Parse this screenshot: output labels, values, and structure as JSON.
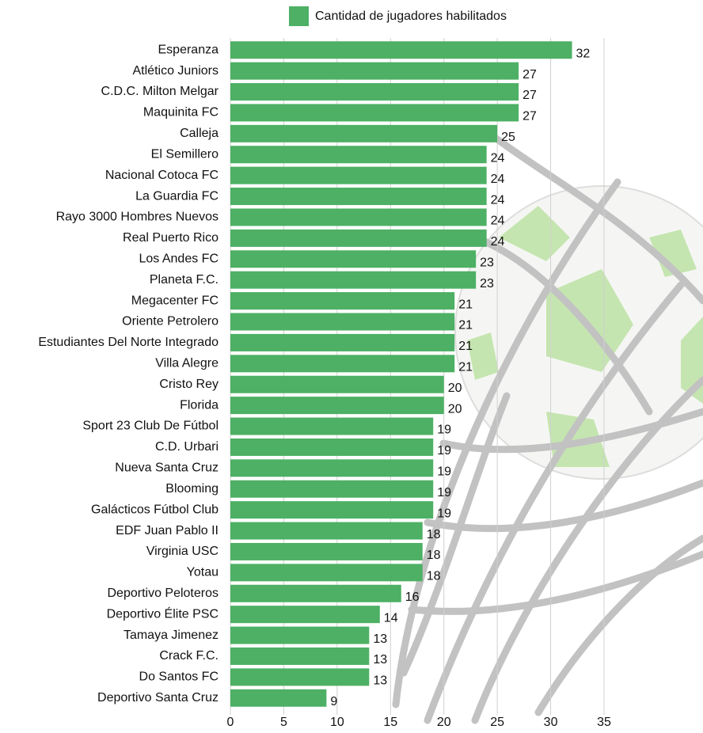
{
  "chart_data": {
    "type": "bar",
    "orientation": "horizontal",
    "categories": [
      "Esperanza",
      "Atlético Juniors",
      "C.D.C. Milton Melgar",
      "Maquinita FC",
      "Calleja",
      "El Semillero",
      "Nacional Cotoca FC",
      "La Guardia FC",
      "Rayo 3000 Hombres Nuevos",
      "Real Puerto Rico",
      "Los Andes FC",
      "Planeta F.C.",
      "Megacenter FC",
      "Oriente Petrolero",
      "Estudiantes Del Norte Integrado",
      "Villa Alegre",
      "Cristo Rey",
      "Florida",
      "Sport 23 Club De Fútbol",
      "C.D. Urbari",
      "Nueva Santa Cruz",
      "Blooming",
      "Galácticos Fútbol Club",
      "EDF Juan Pablo II",
      "Virginia USC",
      "Yotau",
      "Deportivo Peloteros",
      "Deportivo Élite PSC",
      "Tamaya Jimenez",
      "Crack F.C.",
      "Do Santos FC",
      "Deportivo Santa Cruz"
    ],
    "series": [
      {
        "name": "Cantidad de jugadores habilitados",
        "color": "#4db064",
        "values": [
          32,
          27,
          27,
          27,
          25,
          24,
          24,
          24,
          24,
          24,
          23,
          23,
          21,
          21,
          21,
          21,
          20,
          20,
          19,
          19,
          19,
          19,
          19,
          18,
          18,
          18,
          16,
          14,
          13,
          13,
          13,
          9
        ]
      }
    ],
    "xlim": [
      0,
      35
    ],
    "xticks": [
      0,
      5,
      10,
      15,
      20,
      25,
      30,
      35
    ],
    "grid": true,
    "legend": "top"
  }
}
